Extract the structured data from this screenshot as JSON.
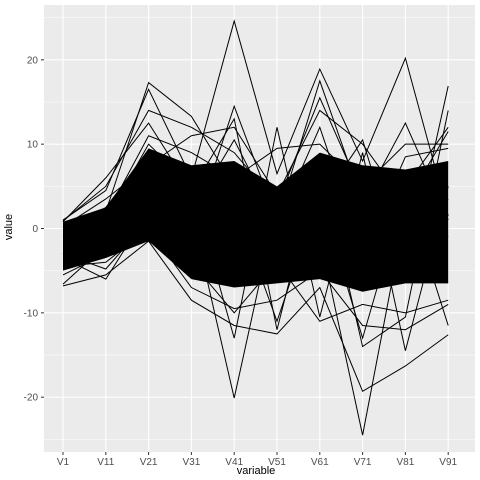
{
  "chart_data": {
    "type": "line",
    "subtype": "parallel-coordinates",
    "title": "",
    "xlabel": "variable",
    "ylabel": "value",
    "categories": [
      "V1",
      "V11",
      "V21",
      "V31",
      "V41",
      "V51",
      "V61",
      "V71",
      "V81",
      "V91"
    ],
    "ylim": [
      -26.5,
      26.5
    ],
    "yticks": [
      -20,
      -10,
      0,
      10,
      20
    ],
    "grid": true,
    "legend": "none",
    "line_color": "#000000",
    "panel_background": "#ebebeb",
    "grid_color": "#ffffff",
    "band": {
      "upper": [
        0.8,
        2.5,
        9.5,
        7.5,
        8.0,
        5.0,
        9.0,
        7.5,
        7.0,
        8.0
      ],
      "lower": [
        -5.0,
        -3.5,
        -1.5,
        -6.0,
        -7.0,
        -6.5,
        -6.0,
        -7.5,
        -6.5,
        -6.5
      ]
    },
    "series": [
      {
        "values": [
          1.0,
          4.5,
          16.5,
          6.0,
          24.6,
          6.5,
          18.9,
          8.0,
          20.2,
          1.5
        ]
      },
      {
        "values": [
          -6.6,
          -2.0,
          1.5,
          2.0,
          -20.1,
          3.0,
          1.0,
          2.5,
          -2.0,
          3.5
        ]
      },
      {
        "values": [
          -3.0,
          0.5,
          4.0,
          -2.0,
          5.5,
          1.0,
          -1.0,
          -24.5,
          2.0,
          -1.0
        ]
      },
      {
        "values": [
          0.5,
          2.0,
          17.3,
          13.3,
          5.0,
          -5.0,
          3.0,
          10.5,
          -6.0,
          16.9
        ]
      },
      {
        "values": [
          -6.8,
          -5.5,
          -1.5,
          -8.5,
          -11.5,
          -12.5,
          -7.0,
          -19.3,
          -16.3,
          -12.6
        ]
      },
      {
        "values": [
          -3.5,
          -6.0,
          2.0,
          -1.0,
          14.5,
          1.0,
          17.5,
          3.0,
          12.5,
          1.0
        ]
      },
      {
        "values": [
          0.8,
          6.0,
          12.5,
          4.5,
          13.0,
          -12.0,
          8.0,
          -14.0,
          -10.5,
          14.0
        ]
      },
      {
        "values": [
          -2.0,
          1.0,
          10.0,
          5.0,
          -13.0,
          12.0,
          -10.5,
          9.0,
          -14.5,
          5.0
        ]
      },
      {
        "values": [
          0.2,
          3.5,
          7.5,
          11.0,
          12.0,
          4.0,
          14.0,
          10.0,
          3.0,
          11.5
        ]
      },
      {
        "values": [
          -4.5,
          -4.0,
          0.0,
          -7.0,
          -9.5,
          -8.5,
          -5.0,
          -11.5,
          -12.0,
          -9.0
        ]
      },
      {
        "values": [
          -1.0,
          2.5,
          9.0,
          2.0,
          10.5,
          0.5,
          12.0,
          -3.0,
          8.5,
          9.5
        ]
      },
      {
        "values": [
          -5.5,
          -3.0,
          -1.0,
          -4.0,
          -10.0,
          -4.0,
          -11.0,
          -9.0,
          -10.0,
          -8.5
        ]
      },
      {
        "values": [
          0.0,
          1.5,
          11.0,
          9.0,
          6.0,
          9.5,
          10.0,
          5.0,
          10.0,
          10.0
        ]
      },
      {
        "values": [
          -3.0,
          -4.8,
          1.0,
          -5.5,
          3.0,
          -11.0,
          4.0,
          -13.0,
          4.5,
          -11.5
        ]
      },
      {
        "values": [
          0.9,
          5.0,
          14.0,
          12.0,
          9.0,
          3.0,
          15.5,
          4.0,
          5.0,
          12.0
        ]
      }
    ]
  }
}
